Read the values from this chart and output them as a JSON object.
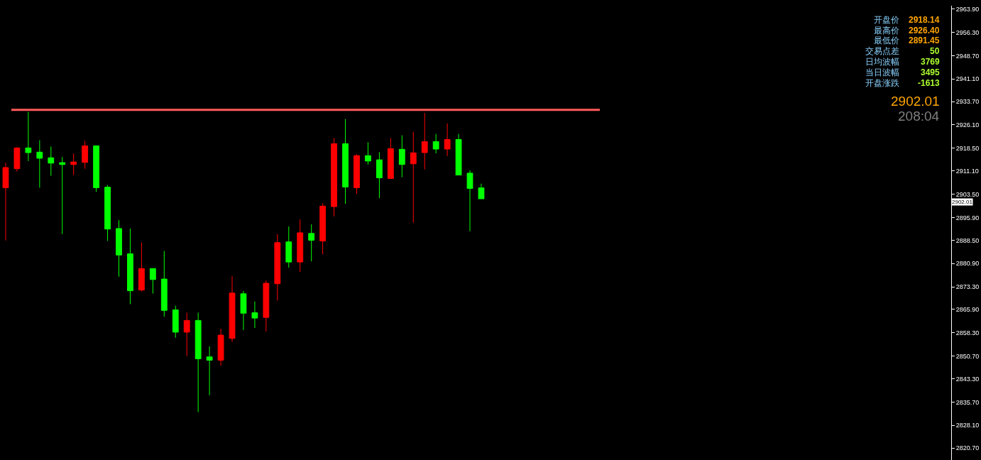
{
  "chart_data": {
    "type": "candlestick",
    "categories": [
      null,
      null,
      null,
      null,
      null,
      null,
      null,
      null,
      null,
      null,
      null,
      null,
      null,
      null,
      null,
      null,
      null,
      null,
      null,
      null,
      null,
      null,
      null,
      null,
      null,
      null,
      null,
      null,
      null,
      null,
      null,
      null,
      null,
      null,
      null,
      null,
      null,
      null,
      null,
      null,
      null,
      null,
      null,
      null,
      null,
      null,
      null,
      null,
      null,
      null,
      null,
      null,
      null,
      null,
      null,
      null,
      null,
      null,
      null,
      null,
      null,
      null,
      null,
      null,
      null,
      null,
      null,
      null,
      null,
      null,
      null,
      null,
      null,
      null,
      null,
      null,
      null,
      null,
      null,
      null,
      null,
      null,
      null,
      null
    ],
    "ohlc": [
      [
        2905.63,
        2913.8,
        2888.41,
        2912.2
      ],
      [
        2911.81,
        2918.83,
        2910.9,
        2918.6
      ],
      [
        2918.6,
        2930.34,
        2914.33,
        2917.07
      ],
      [
        2917.23,
        2921.12,
        2905.63,
        2915.24
      ],
      [
        2915.4,
        2919.06,
        2909.52,
        2913.64
      ],
      [
        2913.8,
        2915.63,
        2890.54,
        2913.18
      ],
      [
        2913.18,
        2916.77,
        2909.75,
        2914.03
      ],
      [
        2913.87,
        2920.89,
        2911.81,
        2919.29
      ],
      [
        2919.29,
        2919.29,
        2904.26,
        2905.63
      ],
      [
        2905.79,
        2906.48,
        2888.25,
        2892.14
      ],
      [
        2892.3,
        2895.04,
        2876.58,
        2883.67
      ],
      [
        2884.06,
        2892.3,
        2867.66,
        2872.01
      ],
      [
        2872.24,
        2887.72,
        2871.78,
        2879.26
      ],
      [
        2879.26,
        2879.26,
        2871.09,
        2875.67
      ],
      [
        2875.83,
        2884.98,
        2863.54,
        2865.6
      ],
      [
        2865.76,
        2867.13,
        2856.68,
        2858.51
      ],
      [
        2858.51,
        2864.85,
        2850.73,
        2862.33
      ],
      [
        2862.33,
        2864.85,
        2832.43,
        2849.82
      ],
      [
        2850.44,
        2853.86,
        2837.92,
        2849.36
      ],
      [
        2849.36,
        2859.59,
        2847.53,
        2857.53
      ],
      [
        2856.45,
        2876.74,
        2855.31,
        2871.25
      ],
      [
        2871.02,
        2871.94,
        2859.2,
        2864.69
      ],
      [
        2864.85,
        2868.51,
        2859.88,
        2863.09
      ],
      [
        2863.31,
        2875.37,
        2858.74,
        2874.45
      ],
      [
        2874.29,
        2890.47,
        2868.81,
        2887.72
      ],
      [
        2887.95,
        2892.98,
        2879.55,
        2881.38
      ],
      [
        2881.38,
        2895.27,
        2878.18,
        2890.92
      ],
      [
        2890.7,
        2893.67,
        2881.61,
        2888.48
      ],
      [
        2888.25,
        2900.53,
        2883.9,
        2899.62
      ],
      [
        2899.46,
        2921.81,
        2896.25,
        2919.98
      ],
      [
        2919.98,
        2927.98,
        2900.37,
        2905.86
      ],
      [
        2905.63,
        2916.55,
        2903.57,
        2916.09
      ],
      [
        2916.09,
        2920.43,
        2913.18,
        2914.33
      ],
      [
        2914.72,
        2917.23,
        2902.2,
        2908.84
      ],
      [
        2908.61,
        2921.81,
        2908.61,
        2918.37
      ],
      [
        2918.15,
        2922.72,
        2909.06,
        2913.18
      ],
      [
        2913.41,
        2923.87,
        2894.2,
        2917.0
      ],
      [
        2917.07,
        2930.04,
        2911.58,
        2920.66
      ],
      [
        2920.66,
        2923.18,
        2916.84,
        2918.22
      ],
      [
        2918.22,
        2926.61,
        2915.93,
        2921.35
      ],
      [
        2921.35,
        2923.18,
        2909.75,
        2909.75
      ],
      [
        2910.37,
        2911.28,
        2891.45,
        2905.4
      ],
      [
        2905.57,
        2906.94,
        2902.01,
        2902.01
      ],
      null,
      null,
      null,
      null,
      null,
      null,
      null,
      null,
      null,
      null,
      null,
      null,
      null,
      null,
      null,
      null,
      null,
      null,
      null,
      null,
      null,
      null,
      null,
      null,
      null,
      null,
      null,
      null,
      null,
      null,
      null,
      null,
      null,
      null,
      null,
      null,
      null,
      null,
      null,
      null,
      null
    ],
    "colors": [
      "#ff0000",
      "#ff0000",
      "#00ff00",
      "#00ff00",
      "#00ff00",
      "#00ff00",
      "#ff0000",
      "#ff0000",
      "#00ff00",
      "#00ff00",
      "#00ff00",
      "#00ff00",
      "#ff0000",
      "#00ff00",
      "#00ff00",
      "#00ff00",
      "#ff0000",
      "#00ff00",
      "#00ff00",
      "#ff0000",
      "#ff0000",
      "#00ff00",
      "#00ff00",
      "#ff0000",
      "#ff0000",
      "#00ff00",
      "#ff0000",
      "#00ff00",
      "#ff0000",
      "#ff0000",
      "#00ff00",
      "#ff0000",
      "#00ff00",
      "#00ff00",
      "#ff0000",
      "#00ff00",
      "#ff0000",
      "#ff0000",
      "#00ff00",
      "#ff0000",
      "#00ff00",
      "#00ff00",
      "#00ff00",
      null,
      null,
      null,
      null,
      null,
      null,
      null,
      null,
      null,
      null,
      null,
      null,
      null,
      null,
      null,
      null,
      null,
      null,
      null,
      null,
      null,
      null,
      null,
      null,
      null,
      null,
      null,
      null,
      null,
      null,
      null,
      null,
      null,
      null,
      null,
      null,
      null,
      null,
      null,
      null,
      null
    ],
    "ylim": [
      2816.8,
      2965.0
    ],
    "yticks": [
      {
        "value": 2963.9,
        "label": "2963.90"
      },
      {
        "value": 2956.3,
        "label": "2956.30"
      },
      {
        "value": 2948.7,
        "label": "2948.70"
      },
      {
        "value": 2941.1,
        "label": "2941.10"
      },
      {
        "value": 2933.7,
        "label": "2933.70"
      },
      {
        "value": 2926.1,
        "label": "2926.10"
      },
      {
        "value": 2918.5,
        "label": "2918.50"
      },
      {
        "value": 2911.1,
        "label": "2911.10"
      },
      {
        "value": 2903.5,
        "label": "2903.50"
      },
      {
        "value": 2895.9,
        "label": "2895.90"
      },
      {
        "value": 2888.5,
        "label": "2888.50"
      },
      {
        "value": 2880.9,
        "label": "2880.90"
      },
      {
        "value": 2873.3,
        "label": "2873.30"
      },
      {
        "value": 2865.9,
        "label": "2865.90"
      },
      {
        "value": 2858.3,
        "label": "2858.30"
      },
      {
        "value": 2850.7,
        "label": "2850.70"
      },
      {
        "value": 2843.3,
        "label": "2843.30"
      },
      {
        "value": 2835.7,
        "label": "2835.70"
      },
      {
        "value": 2828.1,
        "label": "2828.10"
      },
      {
        "value": 2820.7,
        "label": "2820.70"
      }
    ],
    "ref_lines": [
      {
        "axis": "y",
        "value": 2931.0,
        "color": "#ff5a5a"
      }
    ],
    "annotations": [
      "开盘价",
      "最高价",
      "最低价",
      "交易点差",
      "日均波幅",
      "当日波幅",
      "开盘涨跌",
      "2918.14",
      "2926.40",
      "2891.45",
      "50",
      "3769",
      "3495",
      "-1613",
      "2902.01",
      "208:04",
      "2902.01"
    ],
    "grid": false,
    "tick_labels": "y"
  }
}
